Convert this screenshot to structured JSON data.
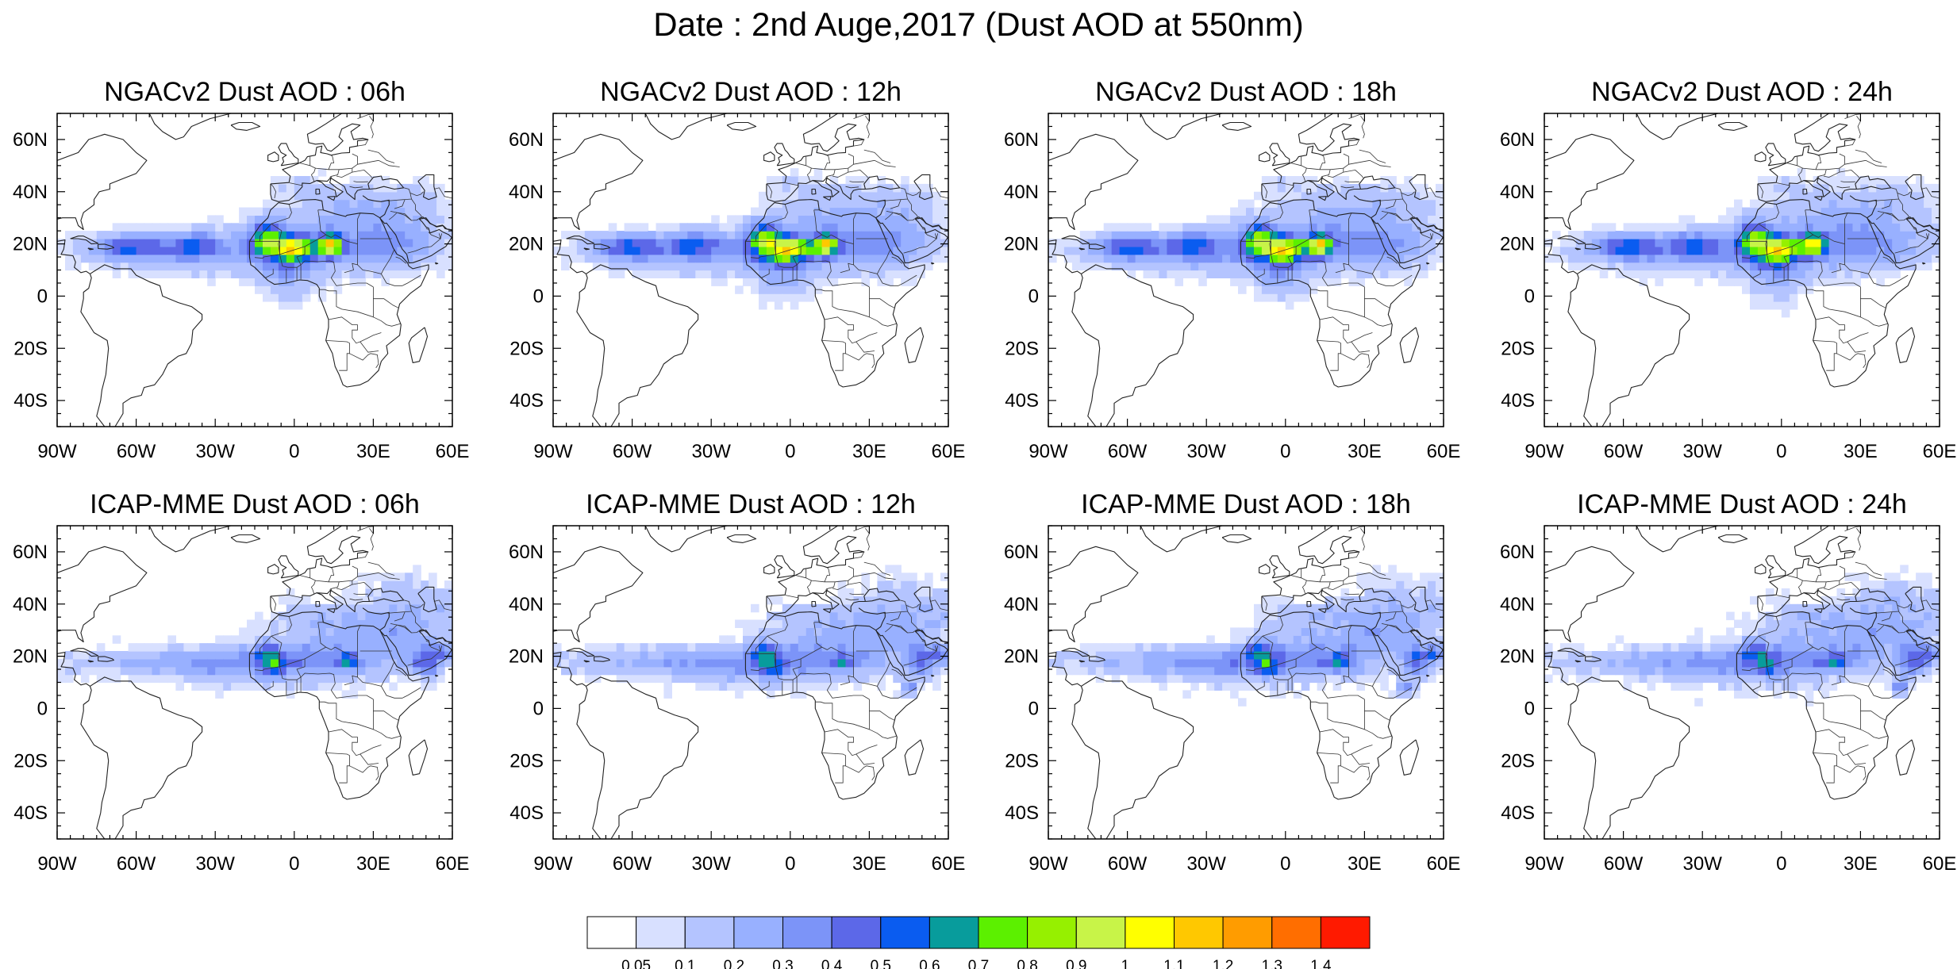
{
  "title": "Date : 2nd Auge,2017 (Dust AOD at 550nm)",
  "map": {
    "lon_range": [
      -90,
      60
    ],
    "lat_range": [
      -50,
      70
    ],
    "lat_ticks": [
      {
        "v": 60,
        "label": "60N"
      },
      {
        "v": 40,
        "label": "40N"
      },
      {
        "v": 20,
        "label": "20N"
      },
      {
        "v": 0,
        "label": "0"
      },
      {
        "v": -20,
        "label": "20S"
      },
      {
        "v": -40,
        "label": "40S"
      }
    ],
    "lon_ticks": [
      {
        "v": -90,
        "label": "90W"
      },
      {
        "v": -60,
        "label": "60W"
      },
      {
        "v": -30,
        "label": "30W"
      },
      {
        "v": 0,
        "label": "0"
      },
      {
        "v": 30,
        "label": "30E"
      },
      {
        "v": 60,
        "label": "60E"
      }
    ]
  },
  "panels": [
    {
      "title": "NGACv2 Dust AOD : 06h",
      "model": "ngac",
      "shift": 0
    },
    {
      "title": "NGACv2 Dust AOD : 12h",
      "model": "ngac",
      "shift": 1
    },
    {
      "title": "NGACv2 Dust AOD : 18h",
      "model": "ngac",
      "shift": 2
    },
    {
      "title": "NGACv2 Dust AOD : 24h",
      "model": "ngac",
      "shift": 3
    },
    {
      "title": "ICAP-MME Dust AOD : 06h",
      "model": "icap",
      "shift": 0
    },
    {
      "title": "ICAP-MME Dust AOD : 12h",
      "model": "icap",
      "shift": 1
    },
    {
      "title": "ICAP-MME Dust AOD : 18h",
      "model": "icap",
      "shift": 2
    },
    {
      "title": "ICAP-MME Dust AOD : 24h",
      "model": "icap",
      "shift": 3
    }
  ],
  "colorbar": {
    "colors": [
      "#ffffff",
      "#d8e0ff",
      "#b4c4ff",
      "#98b0ff",
      "#7c94f8",
      "#5c68e8",
      "#0a5cf0",
      "#089c9c",
      "#5cf000",
      "#96f000",
      "#c8f448",
      "#ffff00",
      "#ffc800",
      "#ff9c00",
      "#ff6e00",
      "#ff1a00"
    ],
    "labels": [
      "0.05",
      "0.1",
      "0.2",
      "0.3",
      "0.4",
      "0.5",
      "0.6",
      "0.7",
      "0.8",
      "0.9",
      "1",
      "1.1",
      "1.2",
      "1.3",
      "1.4"
    ]
  }
}
